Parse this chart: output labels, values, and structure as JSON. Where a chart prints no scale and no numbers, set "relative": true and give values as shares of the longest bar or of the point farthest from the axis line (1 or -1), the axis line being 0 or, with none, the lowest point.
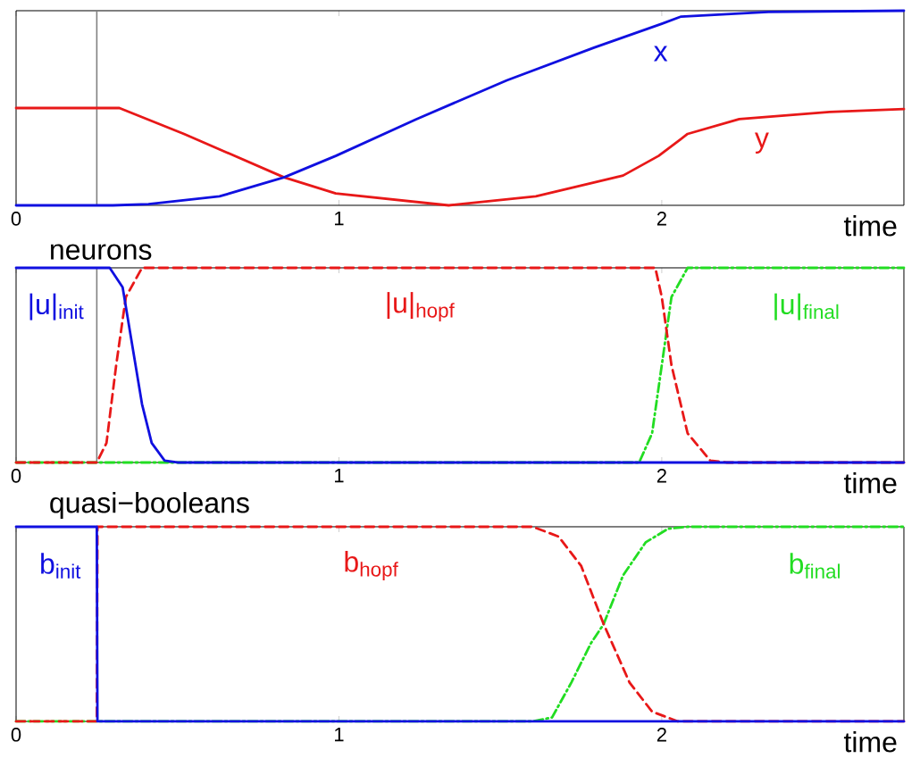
{
  "chart_data": [
    {
      "type": "line",
      "relative": true,
      "xlim": [
        0,
        2.75
      ],
      "xticks": [
        0,
        1,
        2
      ],
      "xlabel": "time",
      "marker": "none",
      "ref_lines": [
        {
          "axis": "x",
          "value": 0.25,
          "color": "#808080"
        }
      ],
      "series": [
        {
          "name": "x",
          "color": "#1010e0",
          "line_style": "solid",
          "x": [
            0,
            0.3,
            0.41,
            0.63,
            0.83,
            0.99,
            1.24,
            1.52,
            1.79,
            2.0,
            2.06,
            2.33,
            2.75
          ],
          "values": [
            0,
            0,
            0.006,
            0.046,
            0.144,
            0.254,
            0.443,
            0.642,
            0.81,
            0.933,
            0.97,
            0.994,
            1
          ]
        },
        {
          "name": "y",
          "color": "#e81818",
          "line_style": "solid",
          "x": [
            0,
            0.32,
            0.52,
            0.83,
            0.99,
            1.34,
            1.61,
            1.88,
            1.99,
            2.08,
            2.24,
            2.52,
            2.75
          ],
          "values": [
            0.5,
            0.5,
            0.367,
            0.144,
            0.061,
            0,
            0.046,
            0.153,
            0.254,
            0.367,
            0.443,
            0.48,
            0.495
          ]
        }
      ]
    },
    {
      "type": "line",
      "relative": true,
      "title": "neurons",
      "xlim": [
        0,
        2.75
      ],
      "xticks": [
        0,
        1,
        2
      ],
      "xlabel": "time",
      "marker": "none",
      "ref_lines": [
        {
          "axis": "x",
          "value": 0.25,
          "color": "#808080"
        }
      ],
      "series": [
        {
          "name": "|u|$_{init}$",
          "color": "#1010e0",
          "line_style": "solid",
          "x": [
            0,
            0.29,
            0.33,
            0.36,
            0.39,
            0.42,
            0.46,
            0.5,
            2.75
          ],
          "values": [
            1,
            1,
            0.9,
            0.6,
            0.3,
            0.1,
            0.01,
            0,
            0
          ]
        },
        {
          "name": "|u|$_{hopf}$",
          "color": "#e81818",
          "line_style": "dashed",
          "x": [
            0,
            0.25,
            0.28,
            0.31,
            0.34,
            0.39,
            1.98,
            2.0,
            2.03,
            2.08,
            2.15,
            2.2,
            2.75
          ],
          "values": [
            0,
            0,
            0.1,
            0.5,
            0.85,
            1,
            1,
            0.85,
            0.5,
            0.15,
            0.01,
            0,
            0
          ]
        },
        {
          "name": "|u|$_{final}$",
          "color": "#22dd22",
          "line_style": "dotted",
          "x": [
            0,
            1.93,
            1.97,
            2.0,
            2.03,
            2.08,
            2.75
          ],
          "values": [
            0,
            0,
            0.15,
            0.5,
            0.85,
            1,
            1
          ]
        }
      ]
    },
    {
      "type": "line",
      "relative": true,
      "title": "quasi−booleans",
      "xlim": [
        0,
        2.75
      ],
      "xticks": [
        0,
        1,
        2
      ],
      "xlabel": "time",
      "marker": "none",
      "series": [
        {
          "name": "b$_{init}$",
          "color": "#1010e0",
          "line_style": "solid",
          "x": [
            0,
            0.25,
            0.252,
            2.75
          ],
          "values": [
            1,
            1,
            0,
            0
          ]
        },
        {
          "name": "b$_{hopf}$",
          "color": "#e81818",
          "line_style": "dashed",
          "x": [
            0,
            0.25,
            0.252,
            1.6,
            1.68,
            1.75,
            1.82,
            1.9,
            1.97,
            2.05,
            2.75
          ],
          "values": [
            0,
            0,
            1,
            1,
            0.95,
            0.8,
            0.5,
            0.2,
            0.05,
            0,
            0
          ]
        },
        {
          "name": "b$_{final}$",
          "color": "#22dd22",
          "line_style": "dotted",
          "x": [
            0,
            1.6,
            1.66,
            1.72,
            1.78,
            1.82,
            1.88,
            1.95,
            2.02,
            2.08,
            2.75
          ],
          "values": [
            0,
            0,
            0.02,
            0.2,
            0.4,
            0.5,
            0.75,
            0.92,
            0.99,
            1,
            1
          ]
        }
      ]
    }
  ]
}
